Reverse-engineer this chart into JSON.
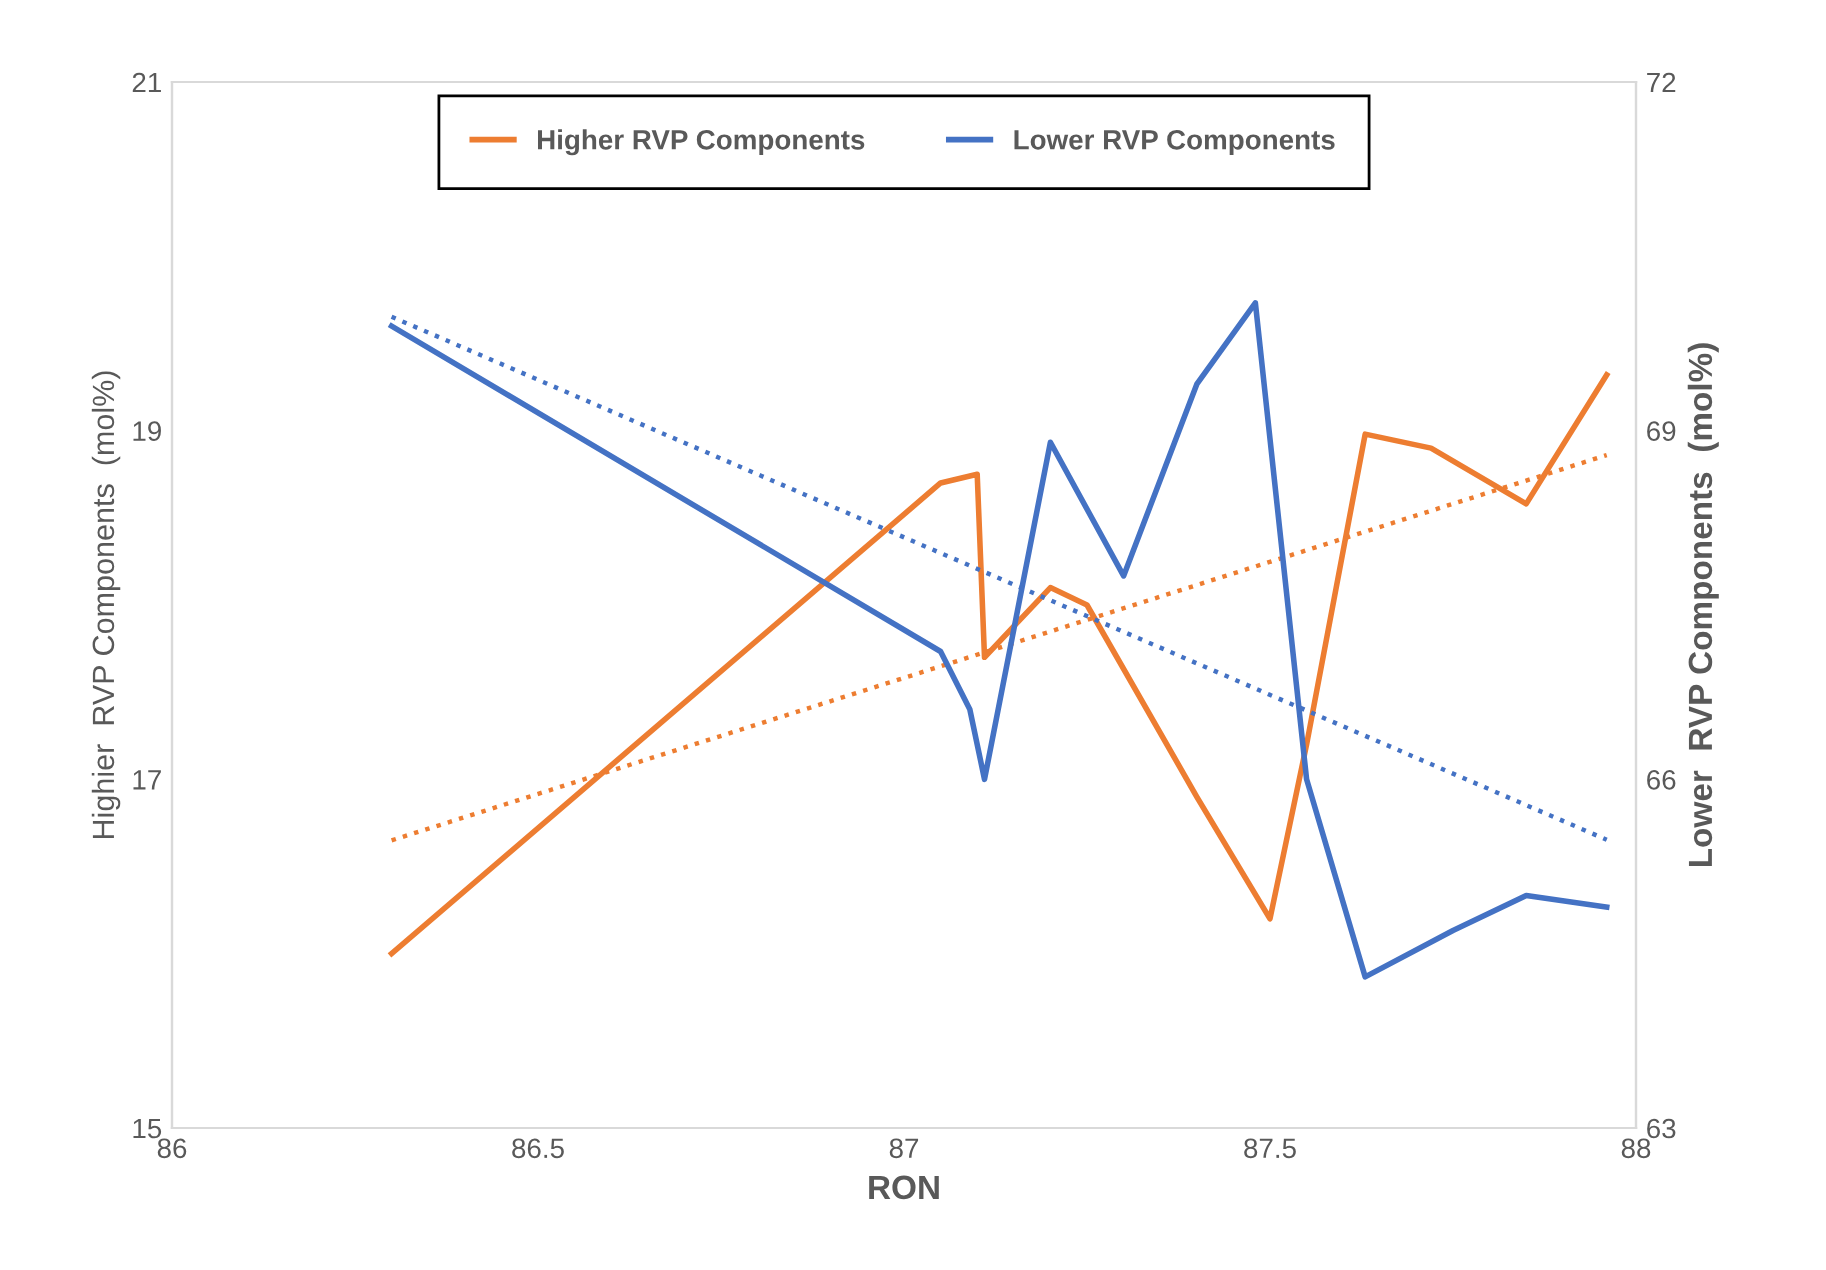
{
  "chart_data": {
    "type": "line",
    "xlabel": "RON",
    "ylabel": "Highier  RVP Components  (mol%)",
    "y2label": "Lower  RVP Components  (mol%)",
    "xlim": [
      86,
      88
    ],
    "xticks": [
      86,
      86.5,
      87,
      87.5,
      88
    ],
    "ylim": [
      15,
      21
    ],
    "yticks": [
      15,
      17,
      19,
      21
    ],
    "y2lim": [
      63,
      72
    ],
    "y2ticks": [
      63,
      66,
      69,
      72
    ],
    "grid": false,
    "legend": "top",
    "marker": "none",
    "series": [
      {
        "name": "Higher RVP Components",
        "color": "#ed7d31",
        "x": [
          86.3,
          87.05,
          87.1,
          87.11,
          87.2,
          87.25,
          87.4,
          87.5,
          87.55,
          87.63,
          87.72,
          87.85,
          87.96
        ],
        "values": [
          16.0,
          18.7,
          18.75,
          17.7,
          18.1,
          18.0,
          16.9,
          16.2,
          17.2,
          18.98,
          18.9,
          18.58,
          19.32
        ],
        "line_style": "solid"
      },
      {
        "name": "Lower RVP Components",
        "color": "#4472c4",
        "axis": "y2",
        "x": [
          86.3,
          87.05,
          87.09,
          87.11,
          87.2,
          87.3,
          87.4,
          87.48,
          87.55,
          87.63,
          87.75,
          87.85,
          87.96
        ],
        "values": [
          69.9,
          67.1,
          66.6,
          66.0,
          68.9,
          67.75,
          69.4,
          70.1,
          66.0,
          64.3,
          64.7,
          65.0,
          64.9
        ],
        "line_style": "solid"
      },
      {
        "color": "#ed7d31",
        "x": [
          86.3,
          87.96
        ],
        "values": [
          16.65,
          18.86
        ],
        "line_style": "dotted"
      },
      {
        "color": "#4472c4",
        "axis": "y2",
        "x": [
          86.3,
          87.96
        ],
        "values": [
          69.98,
          65.48
        ],
        "line_style": "dotted"
      }
    ]
  }
}
